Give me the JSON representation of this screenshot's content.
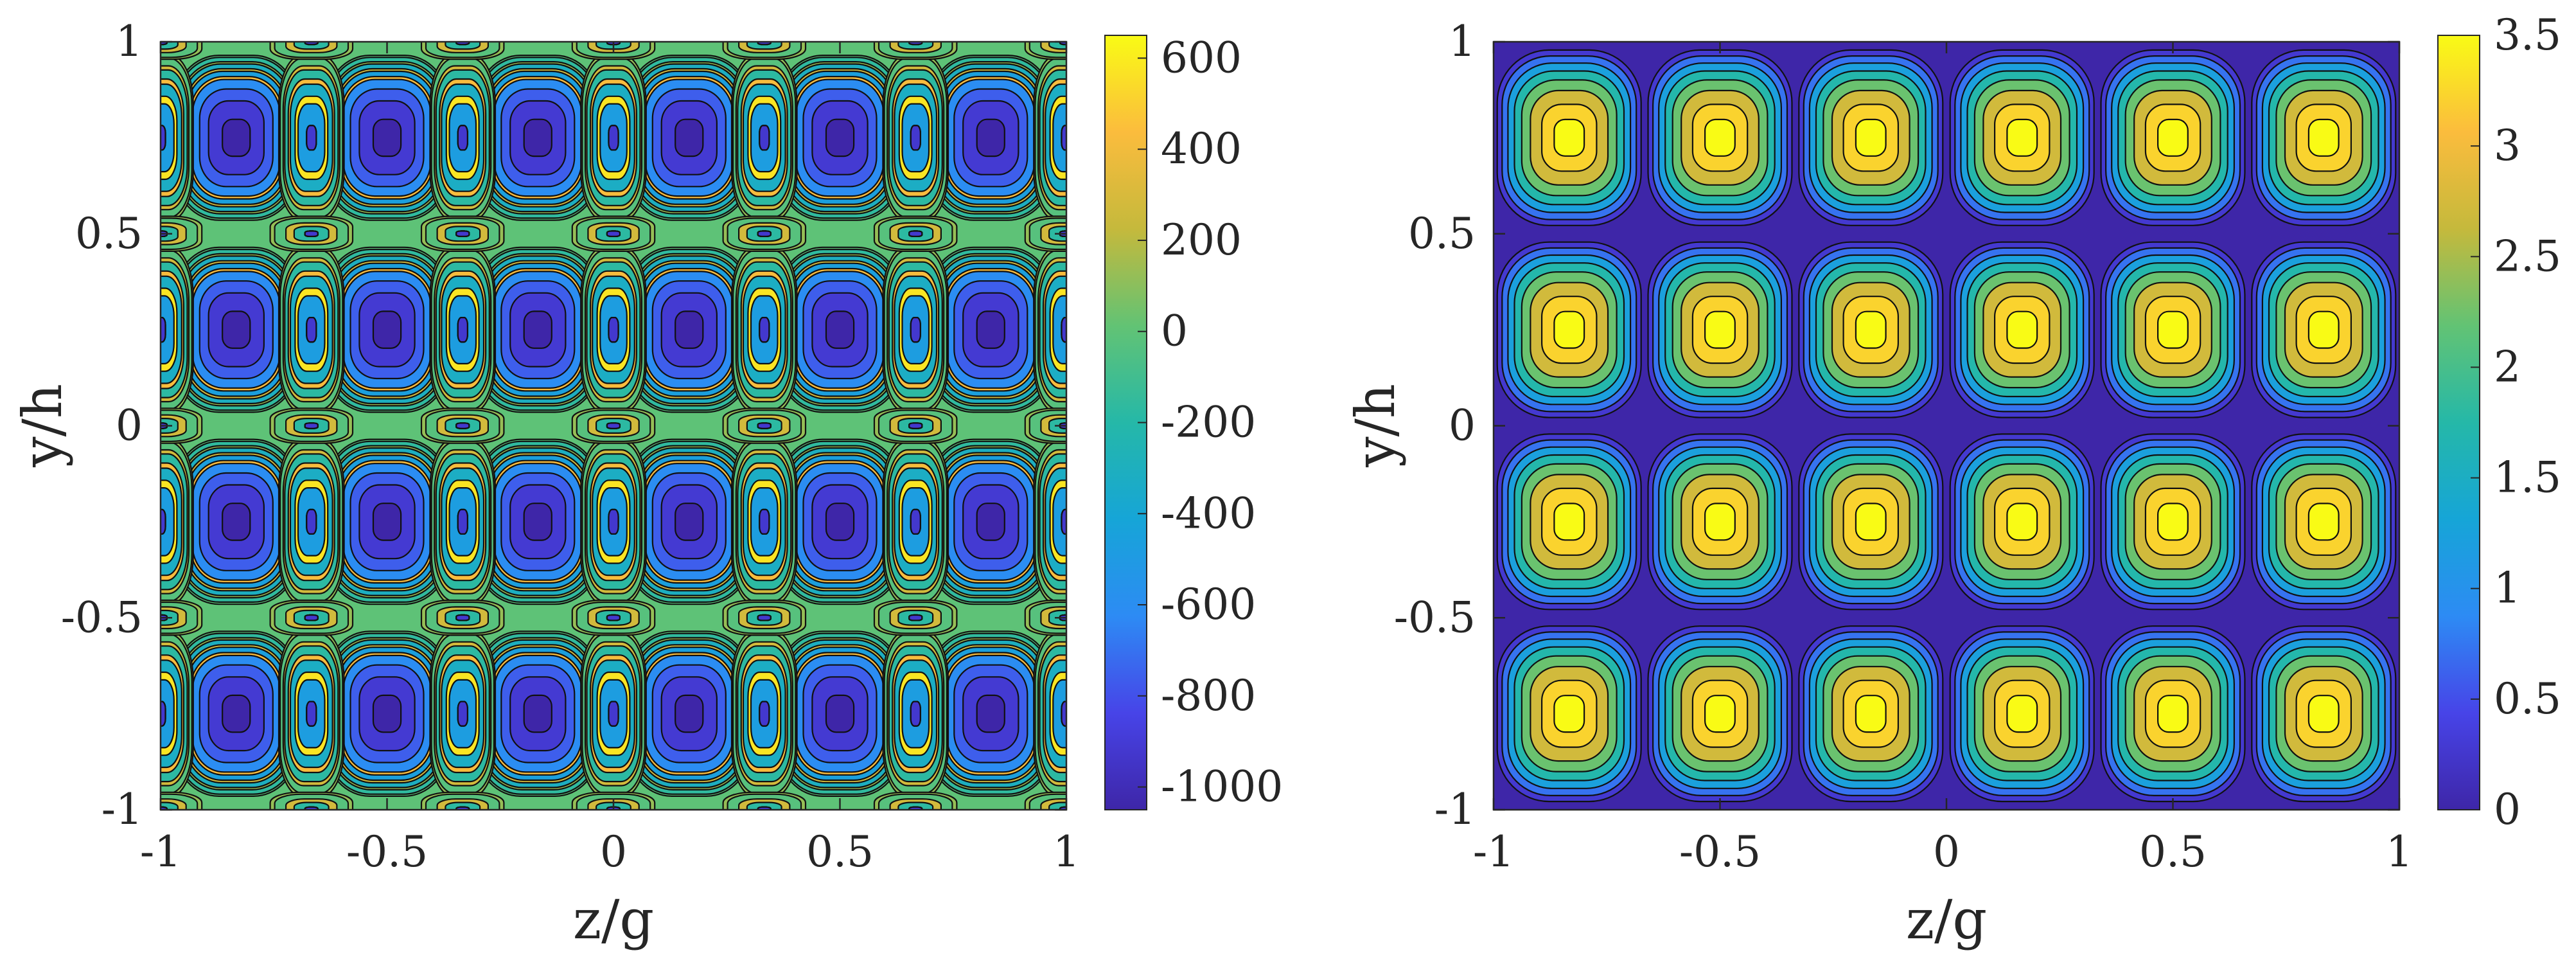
{
  "figure": {
    "background": "#ffffff",
    "panel_count": 2
  },
  "chart_data": [
    {
      "type": "heatmap",
      "style": "filled-contour",
      "title": "",
      "xlabel": "z/g",
      "ylabel": "y/h",
      "xlim": [
        -1,
        1
      ],
      "ylim": [
        -1,
        1
      ],
      "xticks": [
        -1,
        -0.5,
        0,
        0.5,
        1
      ],
      "xtick_labels": [
        "-1",
        "-0.5",
        "0",
        "0.5",
        "1"
      ],
      "yticks": [
        -1,
        -0.5,
        0,
        0.5,
        1
      ],
      "ytick_labels": [
        "-1",
        "-0.5",
        "0",
        "0.5",
        "1"
      ],
      "clim": [
        -1050,
        650
      ],
      "contour_levels": [
        -1000,
        -850,
        -700,
        -550,
        -400,
        -250,
        -100,
        50,
        200,
        350,
        500
      ],
      "colormap": "parula",
      "colorbar": {
        "ticks": [
          600,
          400,
          200,
          0,
          -200,
          -400,
          -600,
          -800,
          -1000
        ],
        "tick_labels": [
          "600",
          "400",
          "200",
          "0",
          "-200",
          "-400",
          "-600",
          "-800",
          "-1000"
        ],
        "placement": "right"
      },
      "field": {
        "description": "periodic cell pattern",
        "cells_z": 6,
        "cells_y": 4,
        "minimum_value": -1050,
        "maximum_value": 650,
        "background_value": 0,
        "y_centers": [
          -0.75,
          -0.25,
          0.25,
          0.75
        ],
        "min_z_centers": [
          -0.833,
          -0.5,
          -0.167,
          0.167,
          0.5,
          0.833
        ],
        "max_z_centers": [
          -1.0,
          -0.667,
          -0.333,
          0.0,
          0.333,
          0.667,
          1.0
        ],
        "secondary_y_centers": [
          -1.0,
          -0.5,
          0.0,
          0.5,
          1.0
        ]
      }
    },
    {
      "type": "heatmap",
      "style": "filled-contour",
      "title": "",
      "xlabel": "z/g",
      "ylabel": "y/h",
      "xlim": [
        -1,
        1
      ],
      "ylim": [
        -1,
        1
      ],
      "xticks": [
        -1,
        -0.5,
        0,
        0.5,
        1
      ],
      "xtick_labels": [
        "-1",
        "-0.5",
        "0",
        "0.5",
        "1"
      ],
      "yticks": [
        -1,
        -0.5,
        0,
        0.5,
        1
      ],
      "ytick_labels": [
        "-1",
        "-0.5",
        "0",
        "0.5",
        "1"
      ],
      "clim": [
        0,
        3.5
      ],
      "contour_levels": [
        0.05,
        0.5,
        1.0,
        1.5,
        2.0,
        2.5,
        3.0,
        3.35
      ],
      "colormap": "parula",
      "colorbar": {
        "ticks": [
          3.5,
          3,
          2.5,
          2,
          1.5,
          1,
          0.5,
          0
        ],
        "tick_labels": [
          "3.5",
          "3",
          "2.5",
          "2",
          "1.5",
          "1",
          "0.5",
          "0"
        ],
        "placement": "right"
      },
      "field": {
        "description": "periodic cell pattern",
        "cells_z": 6,
        "cells_y": 4,
        "minimum_value": 0,
        "maximum_value": 3.5,
        "background_value": 0,
        "y_centers": [
          -0.75,
          -0.25,
          0.25,
          0.75
        ],
        "max_z_centers": [
          -0.833,
          -0.5,
          -0.167,
          0.167,
          0.5,
          0.833
        ]
      }
    }
  ]
}
